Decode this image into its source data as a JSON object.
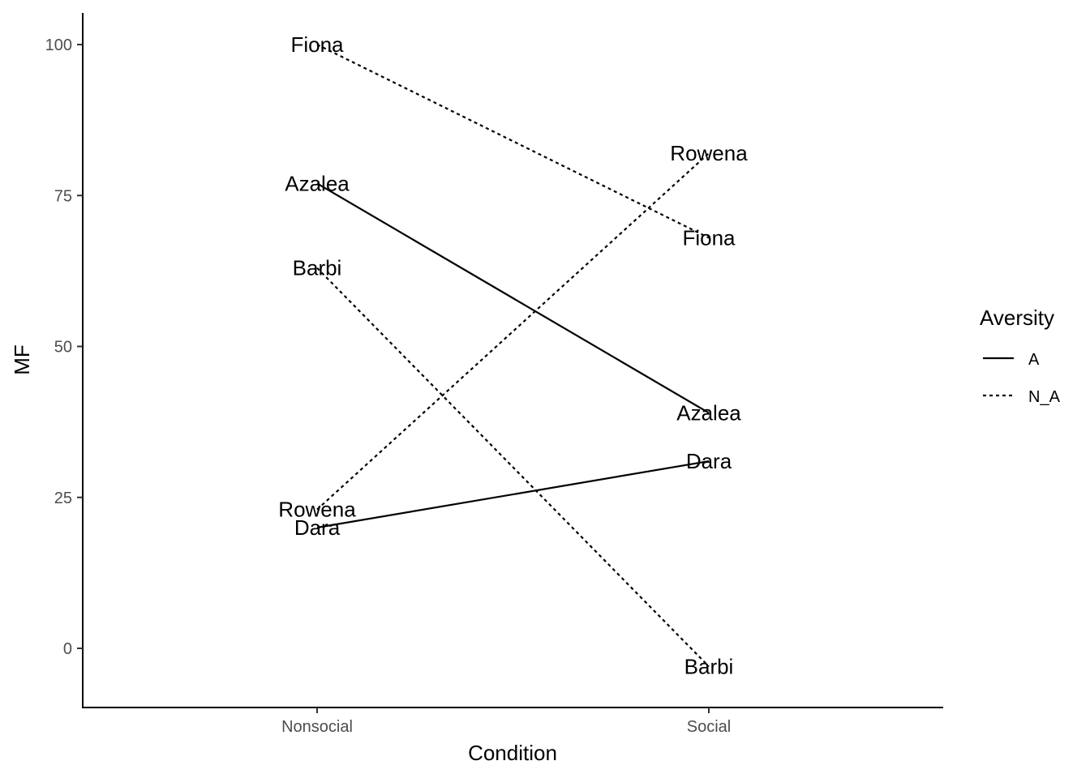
{
  "chart_data": {
    "type": "line",
    "title": "",
    "xlabel": "Condition",
    "ylabel": "MF",
    "categories": [
      "Nonsocial",
      "Social"
    ],
    "ylim": [
      -10,
      105
    ],
    "yticks": [
      0,
      25,
      50,
      75,
      100
    ],
    "grid": false,
    "legend": {
      "title": "Aversity",
      "placement": "right",
      "entries": [
        {
          "label": "A",
          "linetype": "solid"
        },
        {
          "label": "N_A",
          "linetype": "dotted"
        }
      ]
    },
    "line_color": "#000000",
    "series": [
      {
        "label": "Fiona",
        "aversity": "N_A",
        "values": [
          100,
          68
        ]
      },
      {
        "label": "Azalea",
        "aversity": "A",
        "values": [
          77,
          39
        ]
      },
      {
        "label": "Barbi",
        "aversity": "N_A",
        "values": [
          63,
          -3
        ]
      },
      {
        "label": "Rowena",
        "aversity": "N_A",
        "values": [
          23,
          82
        ]
      },
      {
        "label": "Dara",
        "aversity": "A",
        "values": [
          20,
          31
        ]
      }
    ]
  }
}
